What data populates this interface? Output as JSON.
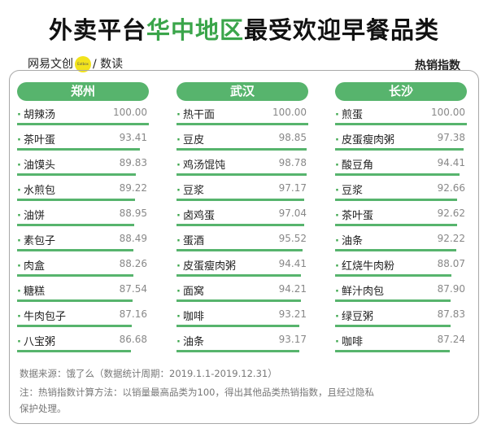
{
  "header": {
    "title_prefix": "外卖平台",
    "title_highlight": "华中地区",
    "title_suffix": "最受欢迎早餐品类",
    "brand_name": "网易文创",
    "brand_logo_text": "Eatbox",
    "brand_suffix": "/ 数读",
    "metric_label": "热销指数"
  },
  "colors": {
    "accent": "#57b46d",
    "title_highlight": "#3aa54a"
  },
  "chart_data": [
    {
      "type": "bar",
      "title": "郑州",
      "categories": [
        "胡辣汤",
        "茶叶蛋",
        "油馍头",
        "水煎包",
        "油饼",
        "素包子",
        "肉盒",
        "糖糕",
        "牛肉包子",
        "八宝粥"
      ],
      "values": [
        100.0,
        93.41,
        89.83,
        89.22,
        88.95,
        88.49,
        88.26,
        87.54,
        87.16,
        86.68
      ],
      "value_labels": [
        "100.00",
        "93.41",
        "89.83",
        "89.22",
        "88.95",
        "88.49",
        "88.26",
        "87.54",
        "87.16",
        "86.68"
      ],
      "xlim": [
        0,
        100
      ]
    },
    {
      "type": "bar",
      "title": "武汉",
      "categories": [
        "热干面",
        "豆皮",
        "鸡汤馄饨",
        "豆浆",
        "卤鸡蛋",
        "蛋酒",
        "皮蛋瘦肉粥",
        "面窝",
        "咖啡",
        "油条"
      ],
      "values": [
        100.0,
        98.85,
        98.78,
        97.17,
        97.04,
        95.52,
        94.41,
        94.21,
        93.21,
        93.17
      ],
      "value_labels": [
        "100.00",
        "98.85",
        "98.78",
        "97.17",
        "97.04",
        "95.52",
        "94.41",
        "94.21",
        "93.21",
        "93.17"
      ],
      "xlim": [
        0,
        100
      ]
    },
    {
      "type": "bar",
      "title": "长沙",
      "categories": [
        "煎蛋",
        "皮蛋瘦肉粥",
        "酸豆角",
        "豆浆",
        "茶叶蛋",
        "油条",
        "红烧牛肉粉",
        "鲜汁肉包",
        "绿豆粥",
        "咖啡"
      ],
      "values": [
        100.0,
        97.38,
        94.41,
        92.66,
        92.62,
        92.22,
        88.07,
        87.9,
        87.83,
        87.24
      ],
      "value_labels": [
        "100.00",
        "97.38",
        "94.41",
        "92.66",
        "92.62",
        "92.22",
        "88.07",
        "87.90",
        "87.83",
        "87.24"
      ],
      "xlim": [
        0,
        100
      ]
    }
  ],
  "footer": {
    "source": "数据来源：饿了么（数据统计周期：2019.1.1-2019.12.31）",
    "note_line1": "注：热销指数计算方法：以销量最高品类为100，得出其他品类热销指数，且经过隐私",
    "note_line2": "保护处理。"
  }
}
